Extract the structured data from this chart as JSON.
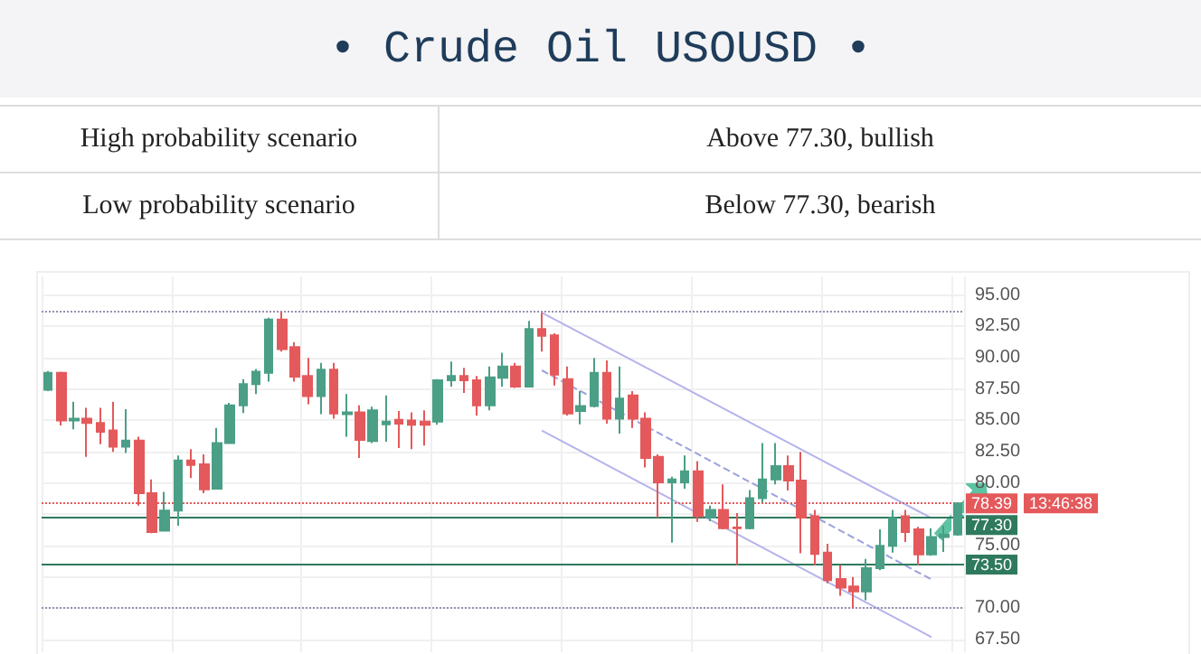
{
  "chart_data": {
    "type": "candlestick",
    "title": "• Crude Oil USOUSD •",
    "annotations": [
      "High probability scenario",
      "Above 77.30, bullish",
      "Low probability scenario",
      "Below 77.30, bearish",
      "13:46:38"
    ],
    "categories": [
      null,
      null,
      null,
      null,
      null,
      null,
      null,
      null,
      null,
      null,
      null,
      null,
      null,
      null,
      null,
      null,
      null,
      null,
      null,
      null,
      null,
      null,
      null,
      null,
      null,
      null,
      null,
      null,
      null,
      null,
      null,
      null,
      null,
      null,
      null,
      null,
      null,
      null,
      null,
      null,
      null,
      null,
      null,
      null,
      null,
      null,
      null,
      null,
      null,
      null,
      null,
      null,
      null,
      null,
      null,
      null,
      null,
      null,
      null,
      null,
      null,
      null,
      null,
      null,
      null,
      null,
      null,
      null,
      null,
      null,
      null
    ],
    "ohlc": [
      [
        87.45,
        88.95,
        87.35,
        88.8
      ],
      [
        88.8,
        88.9,
        84.6,
        85.0
      ],
      [
        85.0,
        86.5,
        84.3,
        85.15
      ],
      [
        85.15,
        86.0,
        82.1,
        84.8
      ],
      [
        84.8,
        86.0,
        83.1,
        84.1
      ],
      [
        84.2,
        86.5,
        82.5,
        82.9
      ],
      [
        82.9,
        85.9,
        82.4,
        83.4
      ],
      [
        83.4,
        83.7,
        78.2,
        79.2
      ],
      [
        79.2,
        80.3,
        76.0,
        76.1
      ],
      [
        76.2,
        79.3,
        76.2,
        77.8
      ],
      [
        77.8,
        82.2,
        76.6,
        81.8
      ],
      [
        81.8,
        82.7,
        80.4,
        81.45
      ],
      [
        81.5,
        82.3,
        79.2,
        79.5
      ],
      [
        79.55,
        84.4,
        79.55,
        83.2
      ],
      [
        83.2,
        86.4,
        83.2,
        86.2
      ],
      [
        86.2,
        88.3,
        85.6,
        87.9
      ],
      [
        87.9,
        89.1,
        87.1,
        88.9
      ],
      [
        88.8,
        93.2,
        88.1,
        93.05
      ],
      [
        93.05,
        93.7,
        90.5,
        90.7
      ],
      [
        90.85,
        91.25,
        88.1,
        88.5
      ],
      [
        88.55,
        90.0,
        86.3,
        86.95
      ],
      [
        86.95,
        89.6,
        85.5,
        89.05
      ],
      [
        89.05,
        89.6,
        85.15,
        85.55
      ],
      [
        85.5,
        87.1,
        83.7,
        85.65
      ],
      [
        85.65,
        86.2,
        82.0,
        83.45
      ],
      [
        83.35,
        86.1,
        83.2,
        85.8
      ],
      [
        84.7,
        87.0,
        83.3,
        84.9
      ],
      [
        85.05,
        85.75,
        82.8,
        84.75
      ],
      [
        85.0,
        85.65,
        82.7,
        84.65
      ],
      [
        84.9,
        85.8,
        83.0,
        84.65
      ],
      [
        84.9,
        88.3,
        84.65,
        88.2
      ],
      [
        88.2,
        89.7,
        87.7,
        88.55
      ],
      [
        88.55,
        89.2,
        87.2,
        88.2
      ],
      [
        88.2,
        88.55,
        85.4,
        86.2
      ],
      [
        86.2,
        89.3,
        85.8,
        88.45
      ],
      [
        88.4,
        90.4,
        87.7,
        89.3
      ],
      [
        89.3,
        89.6,
        87.6,
        87.7
      ],
      [
        87.7,
        92.95,
        87.7,
        92.3
      ],
      [
        92.3,
        93.6,
        90.5,
        91.75
      ],
      [
        91.8,
        91.95,
        87.8,
        88.65
      ],
      [
        88.3,
        89.3,
        85.4,
        85.55
      ],
      [
        85.75,
        87.35,
        84.7,
        86.15
      ],
      [
        86.15,
        90.0,
        86.05,
        88.8
      ],
      [
        88.8,
        89.8,
        84.75,
        85.15
      ],
      [
        85.15,
        89.3,
        83.95,
        86.75
      ],
      [
        87.0,
        87.35,
        84.4,
        85.15
      ],
      [
        85.15,
        85.65,
        81.25,
        82.0
      ],
      [
        82.1,
        82.3,
        77.25,
        80.05
      ],
      [
        80.05,
        80.5,
        75.25,
        80.3
      ],
      [
        80.05,
        82.2,
        79.55,
        80.95
      ],
      [
        80.95,
        81.75,
        76.9,
        77.35
      ],
      [
        77.25,
        78.2,
        76.95,
        77.85
      ],
      [
        77.85,
        79.9,
        76.3,
        76.4
      ],
      [
        76.45,
        77.6,
        73.45,
        76.4
      ],
      [
        76.4,
        79.45,
        76.3,
        78.8
      ],
      [
        78.8,
        83.2,
        78.45,
        80.3
      ],
      [
        80.3,
        83.2,
        79.9,
        81.35
      ],
      [
        81.35,
        82.2,
        79.4,
        80.2
      ],
      [
        80.2,
        82.5,
        74.4,
        77.25
      ],
      [
        77.35,
        77.85,
        73.45,
        74.35
      ],
      [
        74.45,
        75.15,
        72.0,
        72.25
      ],
      [
        72.35,
        73.45,
        71.0,
        71.65
      ],
      [
        71.75,
        72.5,
        70.0,
        71.35
      ],
      [
        71.35,
        73.95,
        70.65,
        73.2
      ],
      [
        73.2,
        76.3,
        73.05,
        75.0
      ],
      [
        75.0,
        77.85,
        74.45,
        77.2
      ],
      [
        77.35,
        77.85,
        75.3,
        76.1
      ],
      [
        76.3,
        76.5,
        73.45,
        74.3
      ],
      [
        74.3,
        76.4,
        74.2,
        75.7
      ],
      [
        75.7,
        76.6,
        74.5,
        75.9
      ],
      [
        75.9,
        78.39,
        75.8,
        78.39
      ]
    ],
    "colors": [
      "#4a9f86",
      "#e4595b",
      "#4a9f86",
      "#e4595b",
      "#e4595b",
      "#e4595b",
      "#4a9f86",
      "#e4595b",
      "#e4595b",
      "#4a9f86",
      "#4a9f86",
      "#e4595b",
      "#e4595b",
      "#4a9f86",
      "#4a9f86",
      "#4a9f86",
      "#4a9f86",
      "#4a9f86",
      "#e4595b",
      "#e4595b",
      "#e4595b",
      "#4a9f86",
      "#e4595b",
      "#4a9f86",
      "#e4595b",
      "#4a9f86",
      "#4a9f86",
      "#e4595b",
      "#e4595b",
      "#e4595b",
      "#4a9f86",
      "#4a9f86",
      "#e4595b",
      "#e4595b",
      "#4a9f86",
      "#4a9f86",
      "#e4595b",
      "#4a9f86",
      "#e4595b",
      "#e4595b",
      "#e4595b",
      "#4a9f86",
      "#4a9f86",
      "#e4595b",
      "#4a9f86",
      "#e4595b",
      "#e4595b",
      "#e4595b",
      "#4a9f86",
      "#4a9f86",
      "#e4595b",
      "#4a9f86",
      "#e4595b",
      "#e4595b",
      "#4a9f86",
      "#4a9f86",
      "#4a9f86",
      "#e4595b",
      "#e4595b",
      "#e4595b",
      "#e4595b",
      "#e4595b",
      "#e4595b",
      "#4a9f86",
      "#4a9f86",
      "#4a9f86",
      "#e4595b",
      "#e4595b",
      "#4a9f86",
      "#4a9f86",
      "#4a9f86"
    ],
    "series": [
      {
        "type": "line",
        "color": "#b4b4ec",
        "line_style": "solid",
        "values": [
          null,
          null,
          null,
          null,
          null,
          null,
          null,
          null,
          null,
          null,
          null,
          null,
          null,
          null,
          null,
          null,
          null,
          null,
          null,
          null,
          null,
          null,
          null,
          null,
          null,
          null,
          null,
          null,
          null,
          null,
          null,
          null,
          null,
          null,
          null,
          null,
          null,
          null,
          93.6,
          null,
          null,
          null,
          null,
          null,
          null,
          null,
          null,
          null,
          null,
          null,
          null,
          null,
          null,
          null,
          null,
          null,
          null,
          null,
          null,
          null,
          null,
          null,
          null,
          null,
          null,
          null,
          null,
          null,
          77.2,
          null,
          null
        ]
      },
      {
        "type": "line",
        "color": "#9aa2dc",
        "line_style": "dashed",
        "values": [
          null,
          null,
          null,
          null,
          null,
          null,
          null,
          null,
          null,
          null,
          null,
          null,
          null,
          null,
          null,
          null,
          null,
          null,
          null,
          null,
          null,
          null,
          null,
          null,
          null,
          null,
          null,
          null,
          null,
          null,
          null,
          null,
          null,
          null,
          null,
          null,
          null,
          null,
          89.0,
          null,
          null,
          null,
          null,
          null,
          null,
          null,
          null,
          null,
          null,
          null,
          null,
          null,
          null,
          null,
          null,
          null,
          null,
          null,
          null,
          null,
          null,
          null,
          null,
          null,
          null,
          null,
          null,
          null,
          72.3,
          null,
          null
        ]
      },
      {
        "type": "line",
        "color": "#b4b4ec",
        "line_style": "solid",
        "values": [
          null,
          null,
          null,
          null,
          null,
          null,
          null,
          null,
          null,
          null,
          null,
          null,
          null,
          null,
          null,
          null,
          null,
          null,
          null,
          null,
          null,
          null,
          null,
          null,
          null,
          null,
          null,
          null,
          null,
          null,
          null,
          null,
          null,
          null,
          null,
          null,
          null,
          null,
          84.2,
          null,
          null,
          null,
          null,
          null,
          null,
          null,
          null,
          null,
          null,
          null,
          null,
          null,
          null,
          null,
          null,
          null,
          null,
          null,
          null,
          null,
          null,
          null,
          null,
          null,
          null,
          null,
          null,
          null,
          67.7,
          null,
          null
        ]
      }
    ],
    "ylim": [
      66.5,
      96.5
    ],
    "yticks": [
      {
        "value": 67.5,
        "label": "67.50"
      },
      {
        "value": 70,
        "label": "70.00"
      },
      {
        "value": 72.5,
        "label": null
      },
      {
        "value": 75,
        "label": "75.00"
      },
      {
        "value": 77.5,
        "label": null
      },
      {
        "value": 80,
        "label": "80.00"
      },
      {
        "value": 82.5,
        "label": "82.50"
      },
      {
        "value": 85,
        "label": "85.00"
      },
      {
        "value": 87.5,
        "label": "87.50"
      },
      {
        "value": 90,
        "label": "90.00"
      },
      {
        "value": 92.5,
        "label": "92.50"
      },
      {
        "value": 95,
        "label": "95.00"
      }
    ],
    "tick_labels": "y",
    "grid": true,
    "ref_lines": [
      {
        "axis": "y",
        "value": 93.7,
        "color": "#9a8fb0",
        "line_style": "dotted"
      },
      {
        "axis": "y",
        "value": 70.0,
        "color": "#9a8fb0",
        "line_style": "dotted"
      },
      {
        "axis": "y",
        "value": 78.39,
        "label": "78.39",
        "color": "#e4595b",
        "line_style": "dotted"
      },
      {
        "axis": "y",
        "value": 77.3,
        "label": "77.30",
        "color": "#2f7a5e",
        "line_style": "solid"
      },
      {
        "axis": "y",
        "value": 73.5,
        "label": "73.50",
        "color": "#2f7a5e",
        "line_style": "solid"
      }
    ]
  }
}
